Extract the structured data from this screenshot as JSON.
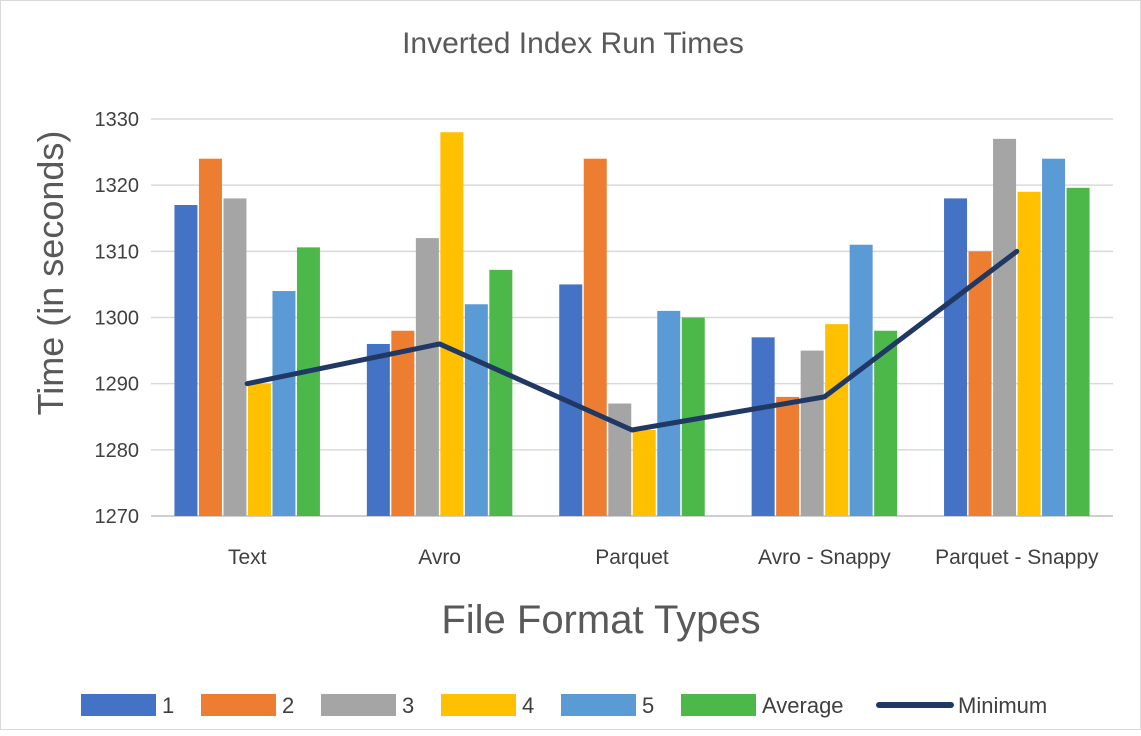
{
  "chart_data": {
    "type": "bar",
    "title": "Inverted Index Run Times",
    "xlabel": "File Format Types",
    "ylabel": "Time (in seconds)",
    "ylim": [
      1270,
      1330
    ],
    "yticks": [
      1270,
      1280,
      1290,
      1300,
      1310,
      1320,
      1330
    ],
    "categories": [
      "Text",
      "Avro",
      "Parquet",
      "Avro - Snappy",
      "Parquet - Snappy"
    ],
    "series": [
      {
        "name": "1",
        "color": "#4472C4",
        "values": [
          1317,
          1296,
          1305,
          1297,
          1318
        ]
      },
      {
        "name": "2",
        "color": "#ED7D31",
        "values": [
          1324,
          1298,
          1324,
          1288,
          1310
        ]
      },
      {
        "name": "3",
        "color": "#A5A5A5",
        "values": [
          1318,
          1312,
          1287,
          1295,
          1327
        ]
      },
      {
        "name": "4",
        "color": "#FFC000",
        "values": [
          1290,
          1328,
          1283,
          1299,
          1319
        ]
      },
      {
        "name": "5",
        "color": "#5B9BD5",
        "values": [
          1304,
          1302,
          1301,
          1311,
          1324
        ]
      },
      {
        "name": "Average",
        "color": "#4CB849",
        "values": [
          1310.6,
          1307.2,
          1300,
          1298,
          1319.6
        ]
      }
    ],
    "line_series": {
      "name": "Minimum",
      "color": "#203864",
      "values": [
        1290,
        1296,
        1283,
        1288,
        1310
      ]
    },
    "grid": true,
    "legend_position": "bottom"
  }
}
